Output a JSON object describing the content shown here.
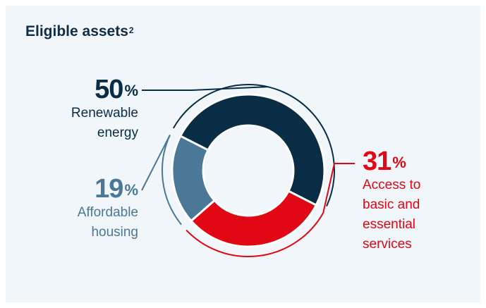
{
  "header": {
    "title": "Eligible assets",
    "footnote": "2"
  },
  "chart_data": {
    "type": "pie",
    "title": "Eligible assets",
    "series": [
      {
        "name": "Renewable energy",
        "label_lines": [
          "Renewable",
          "energy"
        ],
        "value": 50,
        "value_text": "50",
        "unit": "%",
        "color": "#082d45"
      },
      {
        "name": "Access to basic and essential services",
        "label_lines": [
          "Access to",
          "basic and",
          "essential",
          "services"
        ],
        "value": 31,
        "value_text": "31",
        "unit": "%",
        "color": "#e20714"
      },
      {
        "name": "Affordable housing",
        "label_lines": [
          "Affordable",
          "housing"
        ],
        "value": 19,
        "value_text": "19",
        "unit": "%",
        "color": "#4b7896"
      }
    ]
  }
}
